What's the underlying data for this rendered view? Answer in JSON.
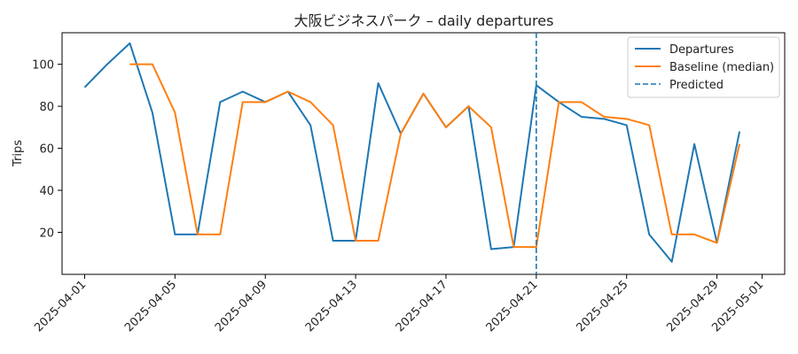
{
  "chart_data": {
    "type": "line",
    "title": "大阪ビジネスパーク – daily departures",
    "xlabel": "",
    "ylabel": "Trips",
    "x": [
      "2025-04-01",
      "2025-04-02",
      "2025-04-03",
      "2025-04-04",
      "2025-04-05",
      "2025-04-06",
      "2025-04-07",
      "2025-04-08",
      "2025-04-09",
      "2025-04-10",
      "2025-04-11",
      "2025-04-12",
      "2025-04-13",
      "2025-04-14",
      "2025-04-15",
      "2025-04-16",
      "2025-04-17",
      "2025-04-18",
      "2025-04-19",
      "2025-04-20",
      "2025-04-21",
      "2025-04-22",
      "2025-04-23",
      "2025-04-24",
      "2025-04-25",
      "2025-04-26",
      "2025-04-27",
      "2025-04-28",
      "2025-04-29",
      "2025-04-30"
    ],
    "xlim": [
      "2025-03-31",
      "2025-05-02"
    ],
    "ylim": [
      0,
      115
    ],
    "xticks": [
      "2025-04-01",
      "2025-04-05",
      "2025-04-09",
      "2025-04-13",
      "2025-04-17",
      "2025-04-21",
      "2025-04-25",
      "2025-04-29",
      "2025-05-01"
    ],
    "yticks": [
      20,
      40,
      60,
      80,
      100
    ],
    "series": [
      {
        "name": "Departures",
        "color": "#1f77b4",
        "values": [
          89,
          100,
          110,
          77,
          19,
          19,
          82,
          87,
          82,
          87,
          71,
          16,
          16,
          91,
          67,
          86,
          70,
          80,
          12,
          13,
          90,
          82,
          75,
          74,
          71,
          19,
          6,
          62,
          15,
          68
        ]
      },
      {
        "name": "Baseline (median)",
        "color": "#ff7f0e",
        "values": [
          null,
          null,
          100,
          100,
          77,
          19,
          19,
          82,
          82,
          87,
          82,
          71,
          16,
          16,
          67,
          86,
          70,
          80,
          70,
          13,
          13,
          82,
          82,
          75,
          74,
          71,
          19,
          19,
          15,
          62
        ]
      }
    ],
    "vline": {
      "name": "Predicted",
      "x": "2025-04-21",
      "color": "#1f77b4",
      "style": "dashed"
    },
    "legend_position": "top-right",
    "grid": false
  }
}
